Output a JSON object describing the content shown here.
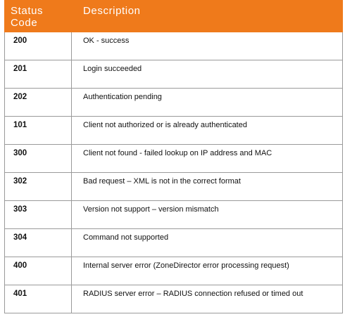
{
  "table": {
    "headers": {
      "code_line1": "Status",
      "code_line2": "Code",
      "description": "Description"
    },
    "rows": [
      {
        "code": "200",
        "description": "OK - success"
      },
      {
        "code": "201",
        "description": "Login succeeded"
      },
      {
        "code": "202",
        "description": "Authentication pending"
      },
      {
        "code": "101",
        "description": "Client not authorized or is already authenticated"
      },
      {
        "code": "300",
        "description": "Client not found - failed lookup on IP address and MAC"
      },
      {
        "code": "302",
        "description": "Bad request – XML is not in the correct format"
      },
      {
        "code": "303",
        "description": "Version not support – version mismatch"
      },
      {
        "code": "304",
        "description": "Command not supported"
      },
      {
        "code": "400",
        "description": "Internal server error (ZoneDirector error processing request)"
      },
      {
        "code": "401",
        "description": "RADIUS server error – RADIUS connection refused or timed out"
      }
    ]
  },
  "colors": {
    "header_background": "#ef7a1b",
    "header_text": "#ffffff",
    "border": "#9a9a9a"
  }
}
